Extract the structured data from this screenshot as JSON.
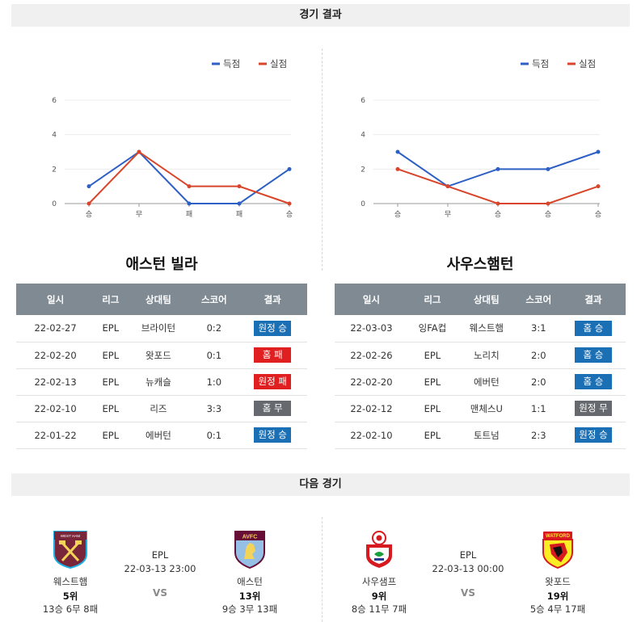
{
  "sections": {
    "results_title": "경기 결과",
    "next_title": "다음 경기"
  },
  "legend": {
    "scored": "득점",
    "conceded": "실점",
    "scored_color": "#2d5fc4",
    "conceded_color": "#d8452a"
  },
  "y_ticks": [
    "6",
    "4",
    "2",
    "0"
  ],
  "chart_data": [
    {
      "type": "line",
      "categories": [
        "승",
        "무",
        "패",
        "패",
        "승"
      ],
      "ylim": [
        0,
        6
      ],
      "series": [
        {
          "name": "득점",
          "values": [
            1,
            3,
            0,
            0,
            2
          ]
        },
        {
          "name": "실점",
          "values": [
            0,
            3,
            1,
            1,
            0
          ]
        }
      ]
    },
    {
      "type": "line",
      "categories": [
        "승",
        "무",
        "승",
        "승",
        "승"
      ],
      "ylim": [
        0,
        6
      ],
      "series": [
        {
          "name": "득점",
          "values": [
            3,
            1,
            2,
            2,
            3
          ]
        },
        {
          "name": "실점",
          "values": [
            2,
            1,
            0,
            0,
            1
          ]
        }
      ]
    }
  ],
  "headers": [
    "일시",
    "리그",
    "상대팀",
    "스코어",
    "결과"
  ],
  "teams": [
    {
      "title": "애스턴 빌라",
      "rows": [
        {
          "date": "22-02-27",
          "league": "EPL",
          "opponent": "브라이턴",
          "score": "0:2",
          "result": "원정 승",
          "color": "blue"
        },
        {
          "date": "22-02-20",
          "league": "EPL",
          "opponent": "왓포드",
          "score": "0:1",
          "result": "홈 패",
          "color": "red"
        },
        {
          "date": "22-02-13",
          "league": "EPL",
          "opponent": "뉴캐슬",
          "score": "1:0",
          "result": "원정 패",
          "color": "red"
        },
        {
          "date": "22-02-10",
          "league": "EPL",
          "opponent": "리즈",
          "score": "3:3",
          "result": "홈 무",
          "color": "gray"
        },
        {
          "date": "22-01-22",
          "league": "EPL",
          "opponent": "에버턴",
          "score": "0:1",
          "result": "원정 승",
          "color": "blue"
        }
      ]
    },
    {
      "title": "사우스햄턴",
      "rows": [
        {
          "date": "22-03-03",
          "league": "잉FA컵",
          "opponent": "웨스트햄",
          "score": "3:1",
          "result": "홈 승",
          "color": "blue"
        },
        {
          "date": "22-02-26",
          "league": "EPL",
          "opponent": "노리치",
          "score": "2:0",
          "result": "홈 승",
          "color": "blue"
        },
        {
          "date": "22-02-20",
          "league": "EPL",
          "opponent": "에버턴",
          "score": "2:0",
          "result": "홈 승",
          "color": "blue"
        },
        {
          "date": "22-02-12",
          "league": "EPL",
          "opponent": "맨체스U",
          "score": "1:1",
          "result": "원정 무",
          "color": "gray"
        },
        {
          "date": "22-02-10",
          "league": "EPL",
          "opponent": "토트넘",
          "score": "2:3",
          "result": "원정 승",
          "color": "blue"
        }
      ]
    }
  ],
  "next_matches": [
    {
      "home": {
        "name": "웨스트햄",
        "rank": "5위",
        "record": "13승 6무 8패",
        "logo_text": "WEST HAM UNITED"
      },
      "league": "EPL",
      "datetime": "22-03-13 23:00",
      "vs": "VS",
      "away": {
        "name": "애스턴",
        "rank": "13위",
        "record": "9승 3무 13패",
        "logo_text": "AVFC"
      }
    },
    {
      "home": {
        "name": "사우샘프",
        "rank": "9위",
        "record": "8승 11무 7패"
      },
      "league": "EPL",
      "datetime": "22-03-13 00:00",
      "vs": "VS",
      "away": {
        "name": "왓포드",
        "rank": "19위",
        "record": "5승 4무 17패",
        "logo_text": "WATFORD"
      }
    }
  ]
}
